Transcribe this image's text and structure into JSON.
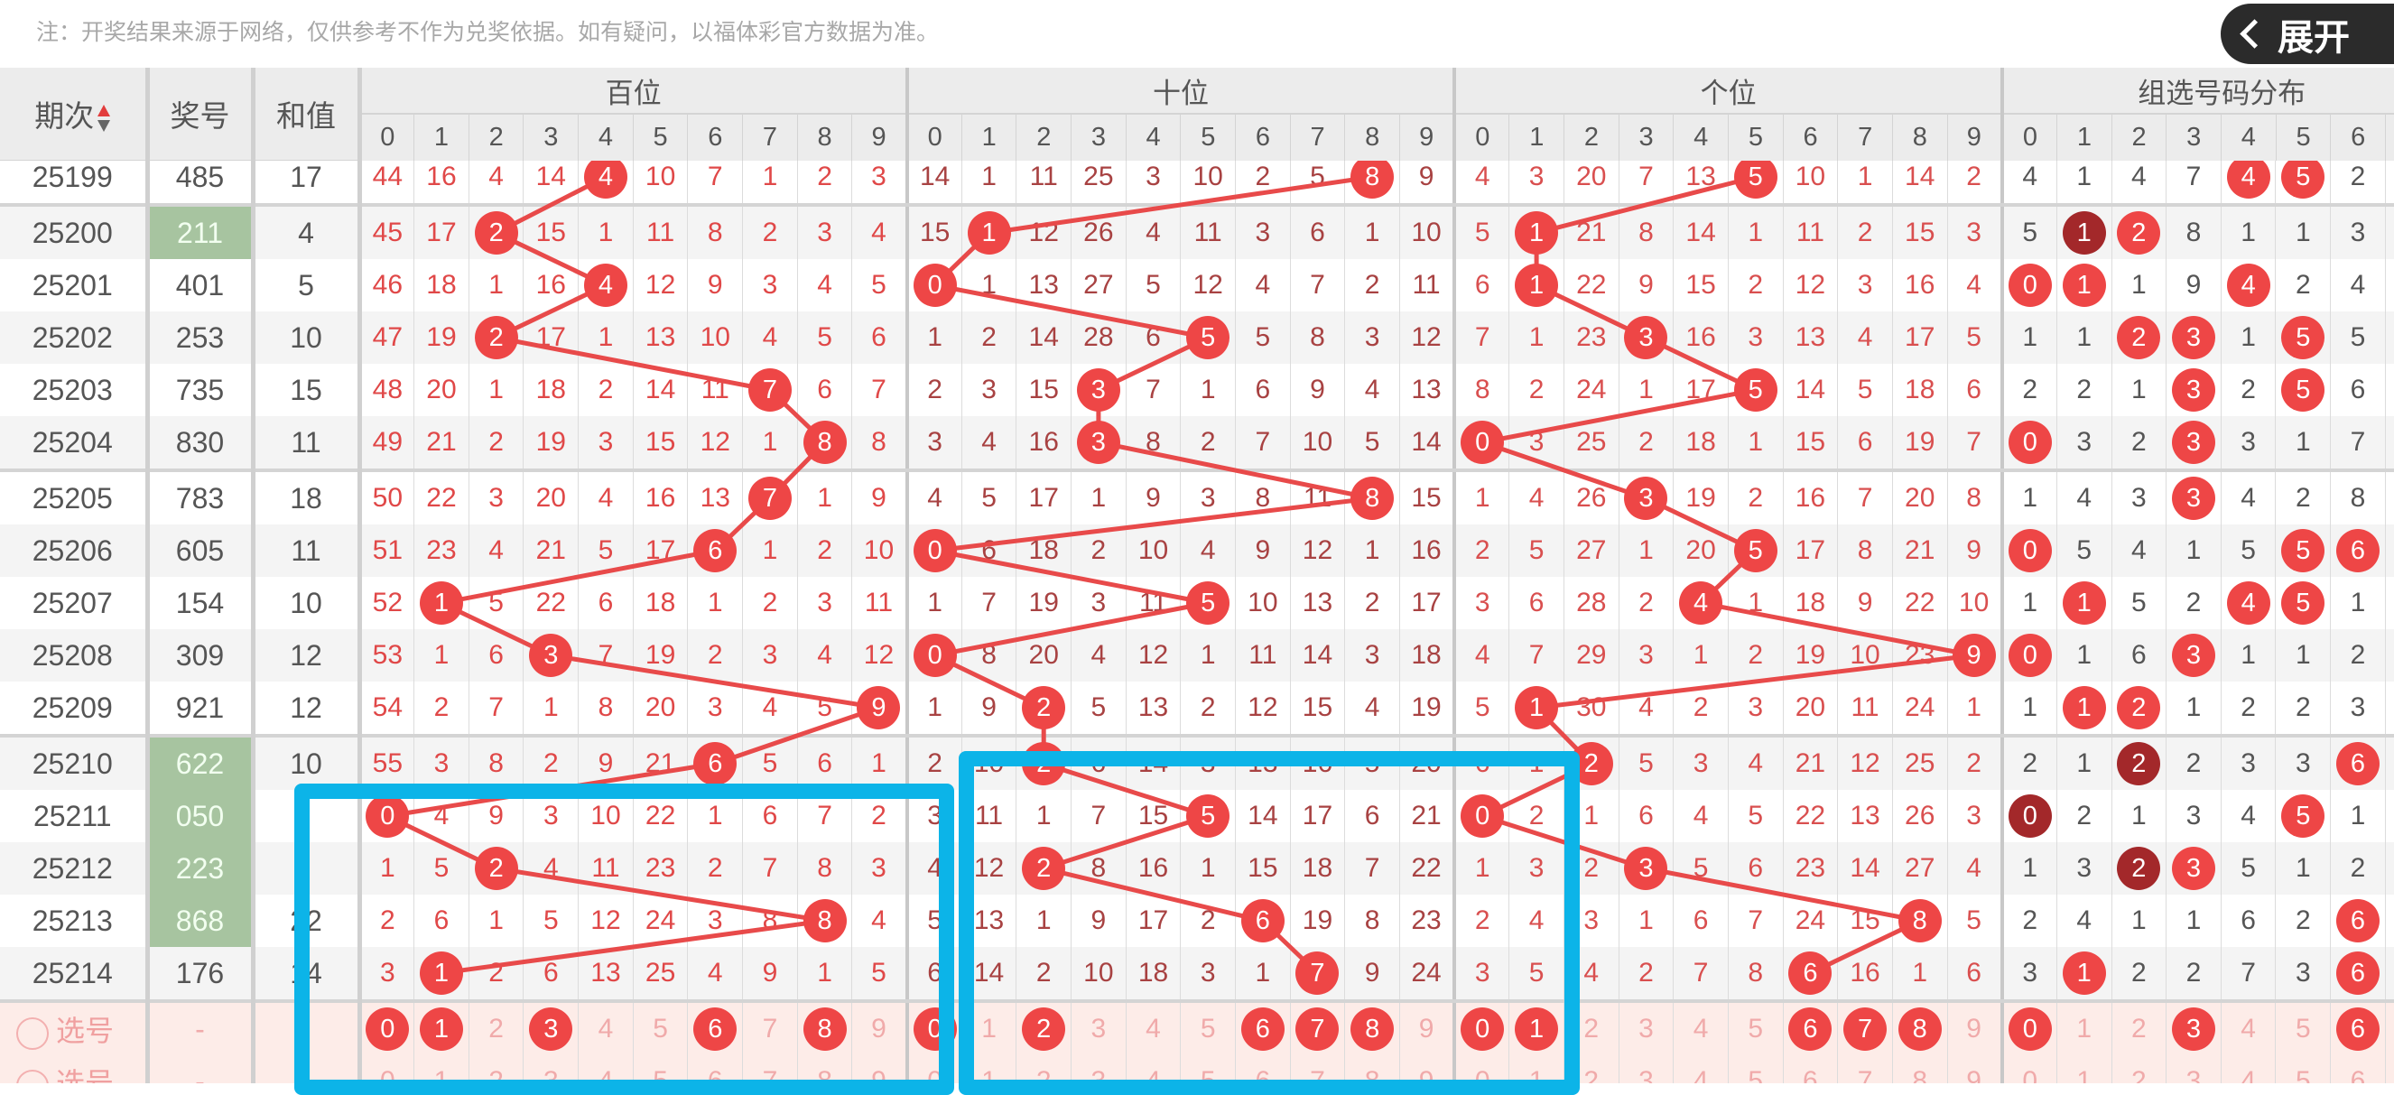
{
  "notice": "注：开奖结果来源于网络，仅供参考不作为兑奖依据。如有疑问，以福体彩官方数据为准。",
  "header": {
    "period": "期次",
    "number": "奖号",
    "sum": "和值",
    "sections": [
      "百位",
      "十位",
      "个位",
      "组选号码分布"
    ],
    "digits": [
      "0",
      "1",
      "2",
      "3",
      "4",
      "5",
      "6",
      "7",
      "8",
      "9"
    ],
    "group_digits": [
      "0",
      "1",
      "2",
      "3",
      "4",
      "5",
      "6"
    ]
  },
  "icons": {
    "sort": "sort-up-down-icon",
    "select": "radio-circle-icon",
    "expand": "chevron-left-icon"
  },
  "colors": {
    "ball": "#ee4646",
    "ball_repeat": "#a3282a",
    "group3_highlight": "#a7c4a0",
    "annotation": "#0cb4e8",
    "line": "#e84a4a"
  },
  "rows": [
    {
      "period": "25199",
      "number": "485",
      "sum": "17",
      "group3": false,
      "hundreds": [
        "44",
        "16",
        "4",
        "14",
        "4",
        "10",
        "7",
        "1",
        "2",
        "3"
      ],
      "tens": [
        "14",
        "1",
        "11",
        "25",
        "3",
        "10",
        "2",
        "5",
        "8",
        "9"
      ],
      "units": [
        "4",
        "3",
        "20",
        "7",
        "13",
        "5",
        "10",
        "1",
        "14",
        "2"
      ],
      "group": [
        "4",
        "1",
        "4",
        "7",
        "4",
        "5",
        "2"
      ]
    },
    {
      "period": "25200",
      "number": "211",
      "sum": "4",
      "group3": true,
      "hundreds": [
        "45",
        "17",
        "2",
        "15",
        "1",
        "11",
        "8",
        "2",
        "3",
        "4"
      ],
      "tens": [
        "15",
        "1",
        "12",
        "26",
        "4",
        "11",
        "3",
        "6",
        "1",
        "10"
      ],
      "units": [
        "5",
        "1",
        "21",
        "8",
        "14",
        "1",
        "11",
        "2",
        "15",
        "3"
      ],
      "group": [
        "5",
        "1",
        "2",
        "8",
        "1",
        "1",
        "3"
      ]
    },
    {
      "period": "25201",
      "number": "401",
      "sum": "5",
      "group3": false,
      "hundreds": [
        "46",
        "18",
        "1",
        "16",
        "4",
        "12",
        "9",
        "3",
        "4",
        "5"
      ],
      "tens": [
        "0",
        "1",
        "13",
        "27",
        "5",
        "12",
        "4",
        "7",
        "2",
        "11"
      ],
      "units": [
        "6",
        "1",
        "22",
        "9",
        "15",
        "2",
        "12",
        "3",
        "16",
        "4"
      ],
      "group": [
        "0",
        "1",
        "1",
        "9",
        "4",
        "2",
        "4"
      ]
    },
    {
      "period": "25202",
      "number": "253",
      "sum": "10",
      "group3": false,
      "hundreds": [
        "47",
        "19",
        "2",
        "17",
        "1",
        "13",
        "10",
        "4",
        "5",
        "6"
      ],
      "tens": [
        "1",
        "2",
        "14",
        "28",
        "6",
        "5",
        "5",
        "8",
        "3",
        "12"
      ],
      "units": [
        "7",
        "1",
        "23",
        "3",
        "16",
        "3",
        "13",
        "4",
        "17",
        "5"
      ],
      "group": [
        "1",
        "1",
        "2",
        "3",
        "1",
        "5",
        "5"
      ]
    },
    {
      "period": "25203",
      "number": "735",
      "sum": "15",
      "group3": false,
      "hundreds": [
        "48",
        "20",
        "1",
        "18",
        "2",
        "14",
        "11",
        "7",
        "6",
        "7"
      ],
      "tens": [
        "2",
        "3",
        "15",
        "3",
        "7",
        "1",
        "6",
        "9",
        "4",
        "13"
      ],
      "units": [
        "8",
        "2",
        "24",
        "1",
        "17",
        "5",
        "14",
        "5",
        "18",
        "6"
      ],
      "group": [
        "2",
        "2",
        "1",
        "3",
        "2",
        "5",
        "6"
      ]
    },
    {
      "period": "25204",
      "number": "830",
      "sum": "11",
      "group3": false,
      "hundreds": [
        "49",
        "21",
        "2",
        "19",
        "3",
        "15",
        "12",
        "1",
        "8",
        "8"
      ],
      "tens": [
        "3",
        "4",
        "16",
        "3",
        "8",
        "2",
        "7",
        "10",
        "5",
        "14"
      ],
      "units": [
        "0",
        "3",
        "25",
        "2",
        "18",
        "1",
        "15",
        "6",
        "19",
        "7"
      ],
      "group": [
        "0",
        "3",
        "2",
        "3",
        "3",
        "1",
        "7"
      ]
    },
    {
      "period": "25205",
      "number": "783",
      "sum": "18",
      "group3": false,
      "hundreds": [
        "50",
        "22",
        "3",
        "20",
        "4",
        "16",
        "13",
        "7",
        "1",
        "9"
      ],
      "tens": [
        "4",
        "5",
        "17",
        "1",
        "9",
        "3",
        "8",
        "11",
        "8",
        "15"
      ],
      "units": [
        "1",
        "4",
        "26",
        "3",
        "19",
        "2",
        "16",
        "7",
        "20",
        "8"
      ],
      "group": [
        "1",
        "4",
        "3",
        "3",
        "4",
        "2",
        "8"
      ]
    },
    {
      "period": "25206",
      "number": "605",
      "sum": "11",
      "group3": false,
      "hundreds": [
        "51",
        "23",
        "4",
        "21",
        "5",
        "17",
        "6",
        "1",
        "2",
        "10"
      ],
      "tens": [
        "0",
        "6",
        "18",
        "2",
        "10",
        "4",
        "9",
        "12",
        "1",
        "16"
      ],
      "units": [
        "2",
        "5",
        "27",
        "1",
        "20",
        "5",
        "17",
        "8",
        "21",
        "9"
      ],
      "group": [
        "0",
        "5",
        "4",
        "1",
        "5",
        "5",
        "6"
      ]
    },
    {
      "period": "25207",
      "number": "154",
      "sum": "10",
      "group3": false,
      "hundreds": [
        "52",
        "1",
        "5",
        "22",
        "6",
        "18",
        "1",
        "2",
        "3",
        "11"
      ],
      "tens": [
        "1",
        "7",
        "19",
        "3",
        "11",
        "5",
        "10",
        "13",
        "2",
        "17"
      ],
      "units": [
        "3",
        "6",
        "28",
        "2",
        "4",
        "1",
        "18",
        "9",
        "22",
        "10"
      ],
      "group": [
        "1",
        "1",
        "5",
        "2",
        "4",
        "5",
        "1"
      ]
    },
    {
      "period": "25208",
      "number": "309",
      "sum": "12",
      "group3": false,
      "hundreds": [
        "53",
        "1",
        "6",
        "3",
        "7",
        "19",
        "2",
        "3",
        "4",
        "12"
      ],
      "tens": [
        "0",
        "8",
        "20",
        "4",
        "12",
        "1",
        "11",
        "14",
        "3",
        "18"
      ],
      "units": [
        "4",
        "7",
        "29",
        "3",
        "1",
        "2",
        "19",
        "10",
        "23",
        "9"
      ],
      "group": [
        "0",
        "1",
        "6",
        "3",
        "1",
        "1",
        "2"
      ]
    },
    {
      "period": "25209",
      "number": "921",
      "sum": "12",
      "group3": false,
      "hundreds": [
        "54",
        "2",
        "7",
        "1",
        "8",
        "20",
        "3",
        "4",
        "5",
        "9"
      ],
      "tens": [
        "1",
        "9",
        "2",
        "5",
        "13",
        "2",
        "12",
        "15",
        "4",
        "19"
      ],
      "units": [
        "5",
        "1",
        "30",
        "4",
        "2",
        "3",
        "20",
        "11",
        "24",
        "1"
      ],
      "group": [
        "1",
        "1",
        "2",
        "1",
        "2",
        "2",
        "3"
      ]
    },
    {
      "period": "25210",
      "number": "622",
      "sum": "10",
      "group3": true,
      "hundreds": [
        "55",
        "3",
        "8",
        "2",
        "9",
        "21",
        "6",
        "5",
        "6",
        "1"
      ],
      "tens": [
        "2",
        "10",
        "2",
        "6",
        "14",
        "3",
        "13",
        "16",
        "5",
        "20"
      ],
      "units": [
        "6",
        "1",
        "2",
        "5",
        "3",
        "4",
        "21",
        "12",
        "25",
        "2"
      ],
      "group": [
        "2",
        "1",
        "2",
        "2",
        "3",
        "3",
        "6"
      ]
    },
    {
      "period": "25211",
      "number": "050",
      "sum": "",
      "group3": true,
      "hundreds": [
        "0",
        "4",
        "9",
        "3",
        "10",
        "22",
        "1",
        "6",
        "7",
        "2"
      ],
      "tens": [
        "3",
        "11",
        "1",
        "7",
        "15",
        "5",
        "14",
        "17",
        "6",
        "21"
      ],
      "units": [
        "0",
        "2",
        "1",
        "6",
        "4",
        "5",
        "22",
        "13",
        "26",
        "3"
      ],
      "group": [
        "0",
        "2",
        "1",
        "3",
        "4",
        "5",
        "1"
      ]
    },
    {
      "period": "25212",
      "number": "223",
      "sum": "",
      "group3": true,
      "hundreds": [
        "1",
        "5",
        "2",
        "4",
        "11",
        "23",
        "2",
        "7",
        "8",
        "3"
      ],
      "tens": [
        "4",
        "12",
        "2",
        "8",
        "16",
        "1",
        "15",
        "18",
        "7",
        "22"
      ],
      "units": [
        "1",
        "3",
        "2",
        "3",
        "5",
        "6",
        "23",
        "14",
        "27",
        "4"
      ],
      "group": [
        "1",
        "3",
        "2",
        "3",
        "5",
        "1",
        "2"
      ]
    },
    {
      "period": "25213",
      "number": "868",
      "sum": "22",
      "group3": true,
      "hundreds": [
        "2",
        "6",
        "1",
        "5",
        "12",
        "24",
        "3",
        "8",
        "8",
        "4"
      ],
      "tens": [
        "5",
        "13",
        "1",
        "9",
        "17",
        "2",
        "6",
        "19",
        "8",
        "23"
      ],
      "units": [
        "2",
        "4",
        "3",
        "1",
        "6",
        "7",
        "24",
        "15",
        "8",
        "5"
      ],
      "group": [
        "2",
        "4",
        "1",
        "1",
        "6",
        "2",
        "6"
      ]
    },
    {
      "period": "25214",
      "number": "176",
      "sum": "14",
      "group3": false,
      "hundreds": [
        "3",
        "1",
        "2",
        "6",
        "13",
        "25",
        "4",
        "9",
        "1",
        "5"
      ],
      "tens": [
        "6",
        "14",
        "2",
        "10",
        "18",
        "3",
        "1",
        "7",
        "9",
        "24"
      ],
      "units": [
        "3",
        "5",
        "4",
        "2",
        "7",
        "8",
        "6",
        "16",
        "1",
        "6"
      ],
      "group": [
        "3",
        "1",
        "2",
        "2",
        "7",
        "3",
        "6"
      ]
    }
  ],
  "selection_rows": [
    {
      "label": "选号",
      "number": "-",
      "hundreds_selected": [
        0,
        1,
        3,
        6,
        8
      ],
      "tens_selected": [
        0,
        2,
        6,
        7,
        8
      ],
      "units_selected": [
        0,
        1,
        6,
        7,
        8
      ],
      "group_selected": [
        0,
        3,
        6
      ]
    },
    {
      "label": "选号",
      "number": "-",
      "hundreds_selected": [],
      "tens_selected": [],
      "units_selected": [],
      "group_selected": []
    }
  ],
  "expand_button": "展开"
}
